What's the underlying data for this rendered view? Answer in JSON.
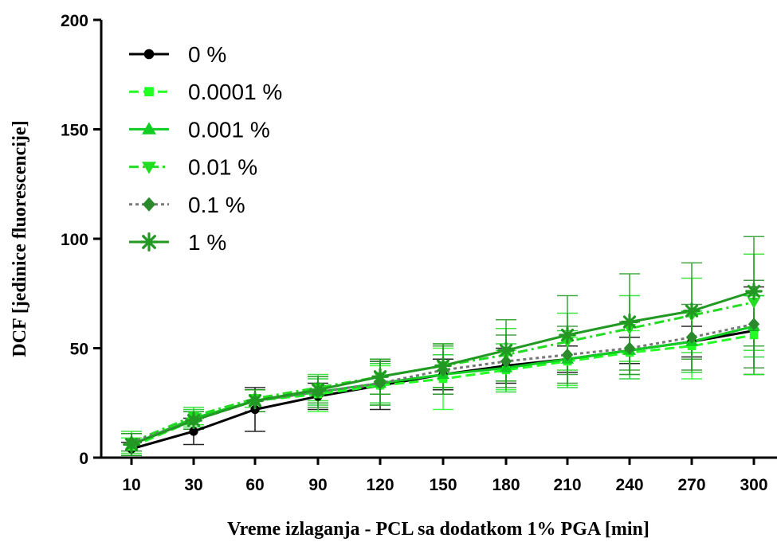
{
  "chart_data": {
    "type": "line",
    "title": "",
    "xlabel": "Vreme izlaganja - PCL sa dodatkom 1% PGA [min]",
    "ylabel": "DCF [jedinice fluorescencije]",
    "categories": [
      "10",
      "30",
      "60",
      "90",
      "120",
      "150",
      "180",
      "210",
      "240",
      "270",
      "300"
    ],
    "ylim": [
      0,
      200
    ],
    "yticks": [
      0,
      50,
      100,
      150,
      200
    ],
    "grid": false,
    "legend_position": "top-left",
    "series": [
      {
        "name": "0 %",
        "color": "#000000",
        "marker": "circle",
        "dash": "solid",
        "values": [
          4,
          12,
          22,
          28,
          33,
          38,
          42,
          45,
          49,
          53,
          58
        ],
        "errors": [
          3,
          6,
          10,
          6,
          11,
          7,
          8,
          6,
          6,
          7,
          20
        ]
      },
      {
        "name": "0.0001 %",
        "color": "#22ff22",
        "marker": "square",
        "dash": "dash",
        "values": [
          5,
          17,
          26,
          29,
          33,
          36,
          40,
          44,
          48,
          51,
          56
        ],
        "errors": [
          4,
          4,
          5,
          8,
          9,
          14,
          9,
          11,
          10,
          15,
          18
        ]
      },
      {
        "name": "0.001 %",
        "color": "#11cc22",
        "marker": "triangle-up",
        "dash": "solid",
        "values": [
          6,
          18,
          26,
          30,
          34,
          38,
          41,
          45,
          49,
          53,
          60
        ],
        "errors": [
          5,
          4,
          5,
          6,
          9,
          9,
          11,
          13,
          13,
          14,
          14
        ]
      },
      {
        "name": "0.01 %",
        "color": "#22dd22",
        "marker": "triangle-down",
        "dash": "dashdot",
        "values": [
          7,
          19,
          27,
          32,
          37,
          42,
          47,
          53,
          59,
          65,
          71
        ],
        "errors": [
          5,
          4,
          4,
          6,
          8,
          10,
          12,
          13,
          15,
          17,
          22
        ]
      },
      {
        "name": "0.1 %",
        "color": "#2b8a2b",
        "marker": "diamond",
        "dash": "dot",
        "line_color": "#777777",
        "values": [
          7,
          17,
          26,
          30,
          34,
          40,
          44,
          47,
          50,
          55,
          61
        ],
        "errors": [
          4,
          4,
          5,
          7,
          10,
          11,
          12,
          13,
          12,
          15,
          20
        ]
      },
      {
        "name": "1 %",
        "color": "#229922",
        "marker": "asterisk",
        "dash": "solid",
        "values": [
          6,
          17,
          26,
          31,
          37,
          42,
          49,
          56,
          62,
          67,
          76
        ],
        "errors": [
          5,
          4,
          5,
          6,
          8,
          10,
          14,
          18,
          22,
          22,
          25
        ]
      }
    ]
  }
}
